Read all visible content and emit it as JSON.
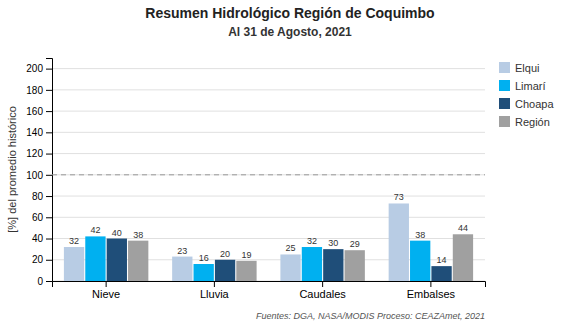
{
  "chart_data": {
    "type": "bar",
    "title": "Resumen Hidrológico Región de Coquimbo",
    "subtitle": "Al  31 de Agosto, 2021",
    "categories": [
      "Nieve",
      "Lluvia",
      "Caudales",
      "Embalses"
    ],
    "series": [
      {
        "name": "Elqui",
        "color": "#b8cce4",
        "values": [
          32,
          23,
          25,
          73
        ]
      },
      {
        "name": "Limarí",
        "color": "#00b0f0",
        "values": [
          42,
          16,
          32,
          38
        ]
      },
      {
        "name": "Choapa",
        "color": "#1f4e79",
        "values": [
          40,
          20,
          30,
          14
        ]
      },
      {
        "name": "Región",
        "color": "#a0a0a0",
        "values": [
          38,
          19,
          29,
          44
        ]
      }
    ],
    "ylim": [
      0,
      210
    ],
    "yticks": [
      0,
      20,
      40,
      60,
      80,
      100,
      120,
      140,
      160,
      180,
      200
    ],
    "ylabel": "[%] del promedio histórico",
    "reference_line": 100,
    "footnote": "Fuentes: DGA, NASA/MODIS Proceso: CEAZAmet, 2021",
    "grid": true,
    "legend": "right",
    "data_labels": true
  }
}
